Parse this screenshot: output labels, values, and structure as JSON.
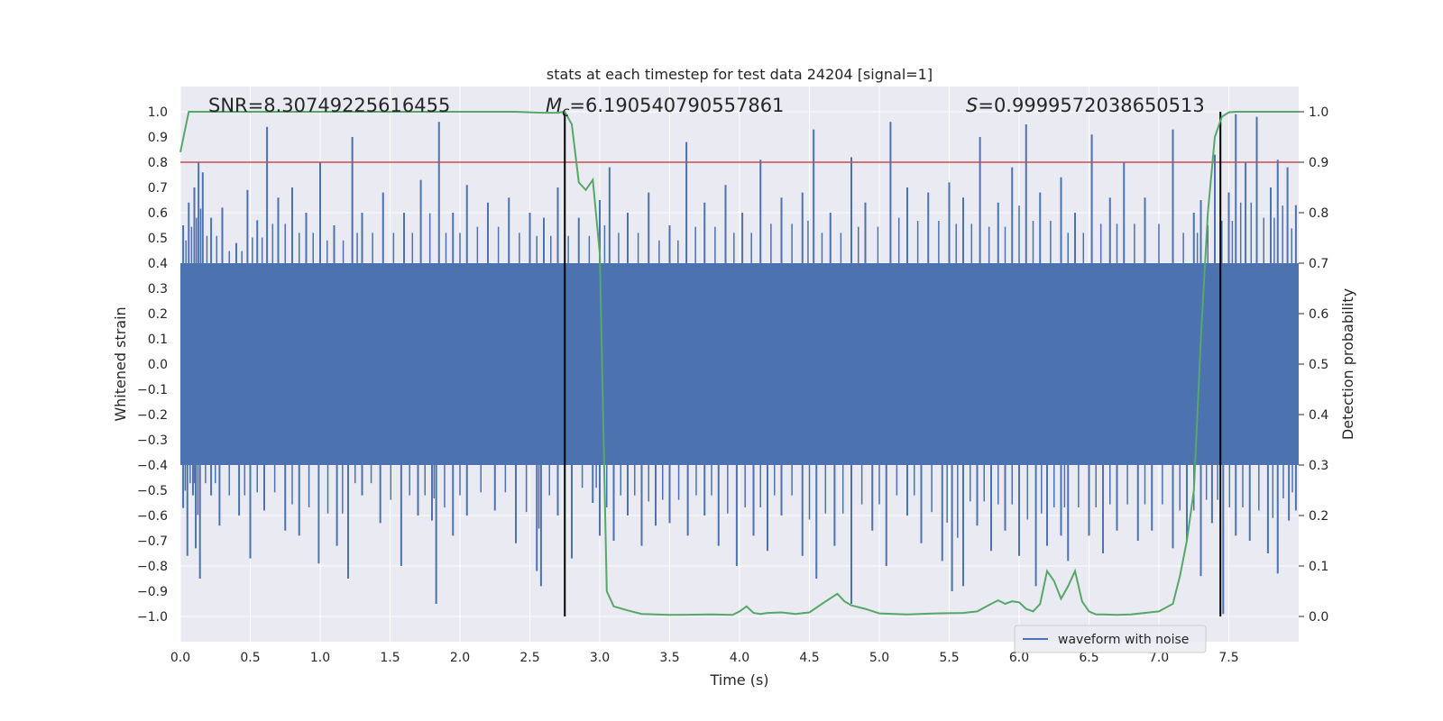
{
  "chart_data": {
    "type": "line",
    "title": "stats at each timestep for test data 24204 [signal=1]",
    "xlabel": "Time (s)",
    "ylabel": "Whitened strain",
    "ylabel_right": "Detection probability",
    "xlim": [
      0.0,
      8.0
    ],
    "ylim": [
      -1.1,
      1.1
    ],
    "ylim_right": [
      -0.05,
      1.05
    ],
    "x_ticks": [
      "0.0",
      "0.5",
      "1.0",
      "1.5",
      "2.0",
      "2.5",
      "3.0",
      "3.5",
      "4.0",
      "4.5",
      "5.0",
      "5.5",
      "6.0",
      "6.5",
      "7.0",
      "7.5"
    ],
    "y_ticks": [
      "1.0",
      "0.9",
      "0.8",
      "0.7",
      "0.6",
      "0.5",
      "0.4",
      "0.3",
      "0.2",
      "0.1",
      "0.0",
      "-0.1",
      "-0.2",
      "-0.3",
      "-0.4",
      "-0.5",
      "-0.6",
      "-0.7",
      "-0.8",
      "-0.9",
      "-1.0"
    ],
    "y_ticks_right": [
      "1.0",
      "0.9",
      "0.8",
      "0.7",
      "0.6",
      "0.5",
      "0.4",
      "0.3",
      "0.2",
      "0.1",
      "0.0"
    ],
    "grid": true,
    "legend": {
      "label": "waveform with noise",
      "placement": "lower-right"
    },
    "annotations": {
      "snr": "SNR=8.30749225616455",
      "mc_symbol": "M",
      "mc_sub": "c",
      "mc_value": "=6.190540790557861",
      "s_symbol": "S",
      "s_value": "=0.9999572038650513"
    },
    "threshold": {
      "value": 0.9,
      "color": "#c44e52"
    },
    "vlines": [
      2.75,
      7.44
    ],
    "series": [
      {
        "name": "waveform with noise",
        "color": "#4c72b0",
        "band": [
          -0.4,
          0.4
        ],
        "peaks": [
          [
            0.02,
            0.55
          ],
          [
            0.06,
            0.64
          ],
          [
            0.1,
            0.7
          ],
          [
            0.13,
            0.8
          ],
          [
            0.16,
            0.76
          ],
          [
            0.22,
            0.58
          ],
          [
            0.3,
            0.62
          ],
          [
            0.4,
            0.48
          ],
          [
            0.48,
            0.69
          ],
          [
            0.55,
            0.57
          ],
          [
            0.62,
            0.94
          ],
          [
            0.7,
            0.66
          ],
          [
            0.8,
            0.7
          ],
          [
            0.9,
            0.6
          ],
          [
            1.0,
            0.8
          ],
          [
            1.1,
            0.55
          ],
          [
            1.23,
            0.9
          ],
          [
            1.3,
            0.6
          ],
          [
            1.45,
            0.68
          ],
          [
            1.6,
            0.6
          ],
          [
            1.72,
            0.73
          ],
          [
            1.85,
            0.96
          ],
          [
            1.95,
            0.6
          ],
          [
            2.05,
            0.71
          ],
          [
            2.2,
            0.64
          ],
          [
            2.35,
            0.66
          ],
          [
            2.5,
            0.6
          ],
          [
            2.6,
            0.58
          ],
          [
            2.7,
            0.7
          ],
          [
            2.85,
            0.58
          ],
          [
            3.0,
            0.65
          ],
          [
            3.07,
            0.78
          ],
          [
            3.2,
            0.6
          ],
          [
            3.35,
            0.68
          ],
          [
            3.5,
            0.55
          ],
          [
            3.62,
            0.88
          ],
          [
            3.75,
            0.64
          ],
          [
            3.9,
            0.71
          ],
          [
            4.02,
            0.6
          ],
          [
            4.15,
            0.81
          ],
          [
            4.3,
            0.66
          ],
          [
            4.45,
            0.68
          ],
          [
            4.53,
            0.93
          ],
          [
            4.65,
            0.6
          ],
          [
            4.8,
            0.82
          ],
          [
            4.9,
            0.64
          ],
          [
            5.08,
            0.96
          ],
          [
            5.2,
            0.7
          ],
          [
            5.35,
            0.68
          ],
          [
            5.5,
            0.72
          ],
          [
            5.6,
            0.66
          ],
          [
            5.72,
            0.9
          ],
          [
            5.85,
            0.64
          ],
          [
            5.95,
            0.78
          ],
          [
            6.05,
            0.95
          ],
          [
            6.15,
            0.68
          ],
          [
            6.3,
            0.74
          ],
          [
            6.4,
            0.6
          ],
          [
            6.52,
            0.91
          ],
          [
            6.65,
            0.66
          ],
          [
            6.75,
            0.8
          ],
          [
            6.9,
            0.66
          ],
          [
            7.1,
            0.93
          ],
          [
            7.25,
            0.6
          ],
          [
            7.3,
            0.65
          ],
          [
            7.4,
            0.83
          ],
          [
            7.5,
            0.68
          ],
          [
            7.55,
            0.99
          ],
          [
            7.62,
            0.8
          ],
          [
            7.7,
            0.98
          ],
          [
            7.8,
            0.7
          ],
          [
            7.85,
            0.81
          ],
          [
            7.92,
            0.78
          ],
          [
            7.98,
            0.63
          ]
        ],
        "troughs": [
          [
            0.02,
            -0.57
          ],
          [
            0.05,
            -0.76
          ],
          [
            0.09,
            -0.52
          ],
          [
            0.11,
            -0.73
          ],
          [
            0.14,
            -0.85
          ],
          [
            0.22,
            -0.52
          ],
          [
            0.28,
            -0.64
          ],
          [
            0.42,
            -0.6
          ],
          [
            0.5,
            -0.77
          ],
          [
            0.6,
            -0.58
          ],
          [
            0.75,
            -0.66
          ],
          [
            0.85,
            -0.68
          ],
          [
            0.99,
            -0.79
          ],
          [
            1.12,
            -0.72
          ],
          [
            1.2,
            -0.85
          ],
          [
            1.3,
            -0.52
          ],
          [
            1.43,
            -0.63
          ],
          [
            1.58,
            -0.8
          ],
          [
            1.7,
            -0.6
          ],
          [
            1.8,
            -0.62
          ],
          [
            1.83,
            -0.95
          ],
          [
            1.95,
            -0.68
          ],
          [
            2.05,
            -0.6
          ],
          [
            2.25,
            -0.58
          ],
          [
            2.4,
            -0.71
          ],
          [
            2.55,
            -0.82
          ],
          [
            2.58,
            -0.88
          ],
          [
            2.7,
            -0.6
          ],
          [
            2.8,
            -0.77
          ],
          [
            2.95,
            -0.55
          ],
          [
            3.0,
            -0.68
          ],
          [
            3.1,
            -0.7
          ],
          [
            3.2,
            -0.6
          ],
          [
            3.3,
            -0.72
          ],
          [
            3.4,
            -0.64
          ],
          [
            3.5,
            -0.63
          ],
          [
            3.63,
            -0.68
          ],
          [
            3.75,
            -0.6
          ],
          [
            3.85,
            -0.72
          ],
          [
            3.98,
            -0.8
          ],
          [
            4.1,
            -0.68
          ],
          [
            4.2,
            -0.74
          ],
          [
            4.3,
            -0.6
          ],
          [
            4.45,
            -0.76
          ],
          [
            4.55,
            -0.85
          ],
          [
            4.68,
            -0.72
          ],
          [
            4.8,
            -0.95
          ],
          [
            4.95,
            -0.66
          ],
          [
            5.05,
            -0.8
          ],
          [
            5.2,
            -0.6
          ],
          [
            5.3,
            -0.71
          ],
          [
            5.45,
            -0.78
          ],
          [
            5.52,
            -0.9
          ],
          [
            5.6,
            -0.88
          ],
          [
            5.7,
            -0.64
          ],
          [
            5.8,
            -0.74
          ],
          [
            5.9,
            -0.66
          ],
          [
            6.0,
            -0.76
          ],
          [
            6.12,
            -0.88
          ],
          [
            6.2,
            -0.72
          ],
          [
            6.3,
            -0.68
          ],
          [
            6.35,
            -0.78
          ],
          [
            6.5,
            -0.68
          ],
          [
            6.6,
            -0.75
          ],
          [
            6.7,
            -0.66
          ],
          [
            6.85,
            -0.7
          ],
          [
            6.95,
            -0.66
          ],
          [
            7.1,
            -0.73
          ],
          [
            7.2,
            -0.7
          ],
          [
            7.3,
            -0.84
          ],
          [
            7.38,
            -0.63
          ],
          [
            7.46,
            -0.99
          ],
          [
            7.55,
            -0.68
          ],
          [
            7.65,
            -0.7
          ],
          [
            7.78,
            -0.75
          ],
          [
            7.85,
            -0.83
          ],
          [
            7.93,
            -0.62
          ],
          [
            7.98,
            -0.58
          ]
        ]
      },
      {
        "name": "detection probability",
        "color": "#55a868",
        "axis": "right",
        "x": [
          0.0,
          0.06,
          0.2,
          0.5,
          1.0,
          1.5,
          2.0,
          2.4,
          2.5,
          2.6,
          2.7,
          2.75,
          2.8,
          2.85,
          2.9,
          2.95,
          3.0,
          3.05,
          3.1,
          3.2,
          3.3,
          3.5,
          3.8,
          3.95,
          4.0,
          4.05,
          4.1,
          4.15,
          4.2,
          4.3,
          4.4,
          4.5,
          4.6,
          4.7,
          4.75,
          4.8,
          4.9,
          5.0,
          5.2,
          5.4,
          5.6,
          5.7,
          5.8,
          5.85,
          5.9,
          5.95,
          6.0,
          6.05,
          6.1,
          6.15,
          6.2,
          6.25,
          6.3,
          6.35,
          6.4,
          6.45,
          6.5,
          6.55,
          6.6,
          6.7,
          6.8,
          7.0,
          7.1,
          7.15,
          7.2,
          7.25,
          7.3,
          7.35,
          7.4,
          7.45,
          7.5,
          7.55,
          7.6,
          7.7,
          7.8,
          8.0
        ],
        "y": [
          0.92,
          1.0,
          1.0,
          1.0,
          1.0,
          1.0,
          1.0,
          1.0,
          0.999,
          0.998,
          0.998,
          1.0,
          0.975,
          0.86,
          0.845,
          0.865,
          0.72,
          0.05,
          0.02,
          0.012,
          0.005,
          0.003,
          0.004,
          0.003,
          0.01,
          0.02,
          0.007,
          0.005,
          0.007,
          0.008,
          0.005,
          0.008,
          0.027,
          0.045,
          0.03,
          0.022,
          0.015,
          0.006,
          0.004,
          0.006,
          0.007,
          0.01,
          0.025,
          0.032,
          0.025,
          0.03,
          0.028,
          0.015,
          0.01,
          0.025,
          0.09,
          0.07,
          0.035,
          0.06,
          0.09,
          0.03,
          0.01,
          0.004,
          0.004,
          0.003,
          0.004,
          0.01,
          0.025,
          0.08,
          0.15,
          0.25,
          0.55,
          0.8,
          0.95,
          0.99,
          0.999,
          1.0,
          1.0,
          1.0,
          1.0,
          1.0
        ]
      }
    ]
  }
}
